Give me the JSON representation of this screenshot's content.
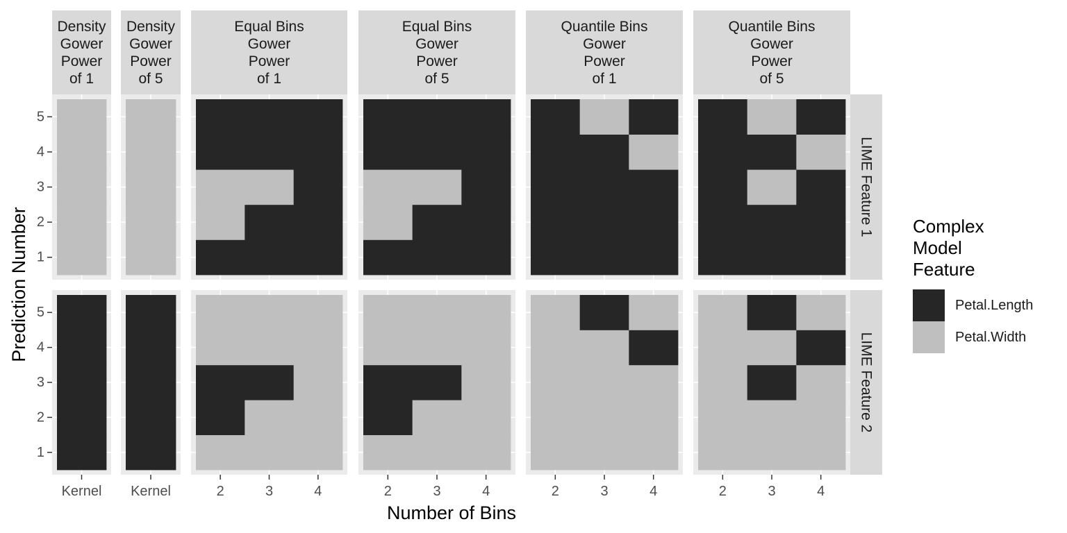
{
  "chart_data": {
    "type": "heatmap",
    "xlabel": "Number of Bins",
    "ylabel": "Prediction Number",
    "y_ticks": [
      "1",
      "2",
      "3",
      "4",
      "5"
    ],
    "column_facets": [
      {
        "label": [
          "Density",
          "Gower",
          "Power",
          "of 1"
        ],
        "x": [
          "Kernel"
        ]
      },
      {
        "label": [
          "Density",
          "Gower",
          "Power",
          "of 5"
        ],
        "x": [
          "Kernel"
        ]
      },
      {
        "label": [
          "Equal Bins",
          "Gower",
          "Power",
          "of 1"
        ],
        "x": [
          "2",
          "3",
          "4"
        ]
      },
      {
        "label": [
          "Equal Bins",
          "Gower",
          "Power",
          "of 5"
        ],
        "x": [
          "2",
          "3",
          "4"
        ]
      },
      {
        "label": [
          "Quantile Bins",
          "Gower",
          "Power",
          "of 1"
        ],
        "x": [
          "2",
          "3",
          "4"
        ]
      },
      {
        "label": [
          "Quantile Bins",
          "Gower",
          "Power",
          "of 5"
        ],
        "x": [
          "2",
          "3",
          "4"
        ]
      }
    ],
    "row_facets": [
      "LIME Feature 1",
      "LIME Feature 2"
    ],
    "legend": {
      "title": [
        "Complex",
        "Model",
        "Feature"
      ],
      "entries": [
        {
          "label": "Petal.Length",
          "color": "#262626"
        },
        {
          "label": "Petal.Width",
          "color": "#bfbfbf"
        }
      ]
    },
    "cells_note": "values[row_facet][col_facet][prediction 1..5][bin index]; L = Petal.Length, W = Petal.Width",
    "values": [
      [
        [
          [
            "W"
          ],
          [
            "W"
          ],
          [
            "W"
          ],
          [
            "W"
          ],
          [
            "W"
          ]
        ],
        [
          [
            "W"
          ],
          [
            "W"
          ],
          [
            "W"
          ],
          [
            "W"
          ],
          [
            "W"
          ]
        ],
        [
          [
            "L",
            "L",
            "L"
          ],
          [
            "W",
            "L",
            "L"
          ],
          [
            "W",
            "W",
            "L"
          ],
          [
            "L",
            "L",
            "L"
          ],
          [
            "L",
            "L",
            "L"
          ]
        ],
        [
          [
            "L",
            "L",
            "L"
          ],
          [
            "W",
            "L",
            "L"
          ],
          [
            "W",
            "W",
            "L"
          ],
          [
            "L",
            "L",
            "L"
          ],
          [
            "L",
            "L",
            "L"
          ]
        ],
        [
          [
            "L",
            "L",
            "L"
          ],
          [
            "L",
            "L",
            "L"
          ],
          [
            "L",
            "L",
            "L"
          ],
          [
            "L",
            "L",
            "W"
          ],
          [
            "L",
            "W",
            "L"
          ]
        ],
        [
          [
            "L",
            "L",
            "L"
          ],
          [
            "L",
            "L",
            "L"
          ],
          [
            "L",
            "W",
            "L"
          ],
          [
            "L",
            "L",
            "W"
          ],
          [
            "L",
            "W",
            "L"
          ]
        ]
      ],
      [
        [
          [
            "L"
          ],
          [
            "L"
          ],
          [
            "L"
          ],
          [
            "L"
          ],
          [
            "L"
          ]
        ],
        [
          [
            "L"
          ],
          [
            "L"
          ],
          [
            "L"
          ],
          [
            "L"
          ],
          [
            "L"
          ]
        ],
        [
          [
            "W",
            "W",
            "W"
          ],
          [
            "L",
            "W",
            "W"
          ],
          [
            "L",
            "L",
            "W"
          ],
          [
            "W",
            "W",
            "W"
          ],
          [
            "W",
            "W",
            "W"
          ]
        ],
        [
          [
            "W",
            "W",
            "W"
          ],
          [
            "L",
            "W",
            "W"
          ],
          [
            "L",
            "L",
            "W"
          ],
          [
            "W",
            "W",
            "W"
          ],
          [
            "W",
            "W",
            "W"
          ]
        ],
        [
          [
            "W",
            "W",
            "W"
          ],
          [
            "W",
            "W",
            "W"
          ],
          [
            "W",
            "W",
            "W"
          ],
          [
            "W",
            "W",
            "L"
          ],
          [
            "W",
            "L",
            "W"
          ]
        ],
        [
          [
            "W",
            "W",
            "W"
          ],
          [
            "W",
            "W",
            "W"
          ],
          [
            "W",
            "L",
            "W"
          ],
          [
            "W",
            "W",
            "L"
          ],
          [
            "W",
            "L",
            "W"
          ]
        ]
      ]
    ],
    "panel_background": "#ebebeb",
    "strip_background": "#d9d9d9",
    "grid": true,
    "legend_position": "right"
  }
}
